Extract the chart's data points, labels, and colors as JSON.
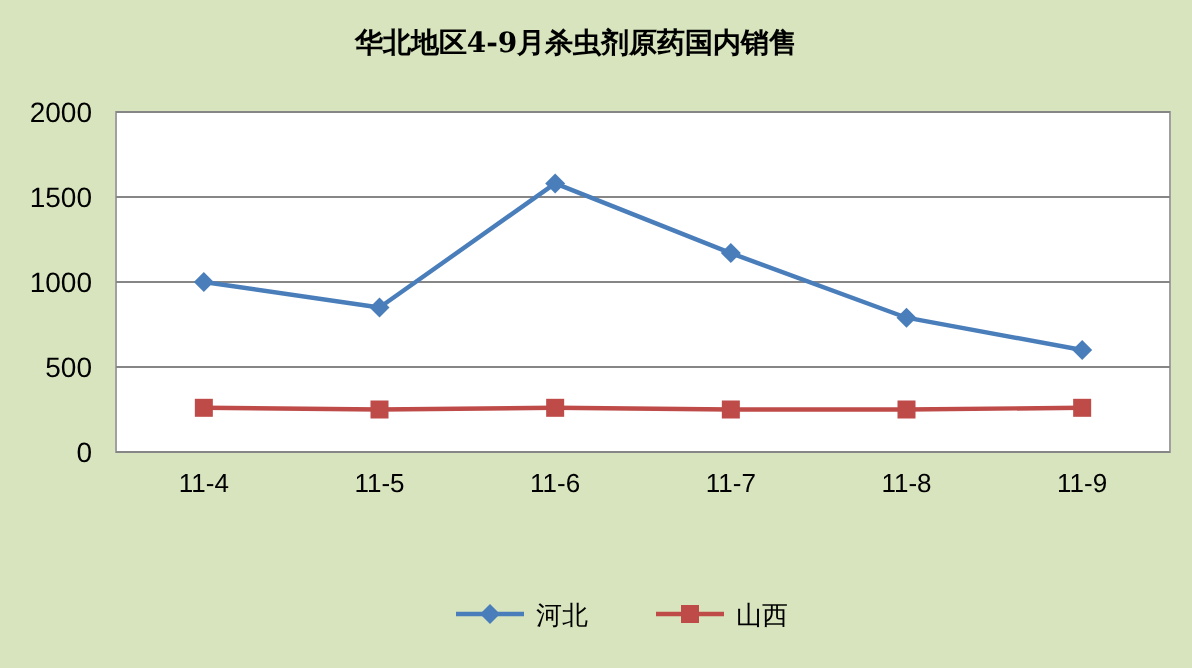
{
  "chart_data": {
    "type": "line",
    "title": "华北地区4-9月杀虫剂原药国内销售",
    "categories": [
      "11-4",
      "11-5",
      "11-6",
      "11-7",
      "11-8",
      "11-9"
    ],
    "series": [
      {
        "name": "河北",
        "color": "#4a7ebb",
        "marker": "diamond",
        "values": [
          1000,
          850,
          1580,
          1170,
          790,
          600
        ]
      },
      {
        "name": "山西",
        "color": "#be4b48",
        "marker": "square",
        "values": [
          260,
          250,
          260,
          250,
          250,
          260
        ]
      }
    ],
    "ylim": [
      0,
      2000
    ],
    "yticks": [
      0,
      500,
      1000,
      1500,
      2000
    ],
    "grid": "y",
    "legend": "bottom"
  }
}
